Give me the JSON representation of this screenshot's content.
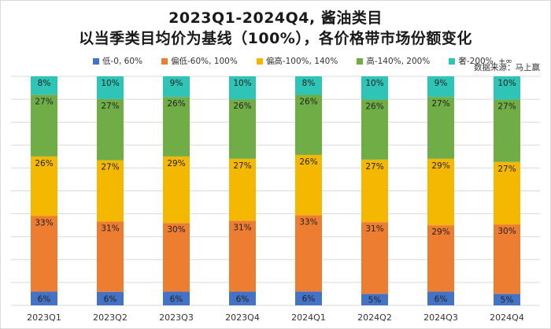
{
  "title_line1": "2023Q1-2024Q4, 酱油类目",
  "title_line2": "以当季类目均价为基线（100%），各价格带市场份额变化",
  "source": "数据来源：马上赢",
  "chart_data": {
    "type": "bar",
    "stacked": true,
    "percent": true,
    "title": "2023Q1-2024Q4, 酱油类目 以当季类目均价为基线（100%），各价格带市场份额变化",
    "xlabel": "",
    "ylabel": "",
    "ylim": [
      0,
      100
    ],
    "grid": true,
    "legend_position": "top",
    "categories": [
      "2023Q1",
      "2023Q2",
      "2023Q3",
      "2023Q4",
      "2024Q1",
      "2024Q2",
      "2024Q3",
      "2024Q4"
    ],
    "series": [
      {
        "name": "低-0, 60%",
        "color": "#4472c4",
        "values": [
          6,
          6,
          6,
          6,
          6,
          5,
          6,
          5
        ]
      },
      {
        "name": "偏低-60%, 100%",
        "color": "#ed7d31",
        "values": [
          33,
          31,
          30,
          31,
          33,
          31,
          29,
          30
        ]
      },
      {
        "name": "偏高-100%, 140%",
        "color": "#f5b800",
        "values": [
          26,
          27,
          29,
          27,
          26,
          27,
          29,
          27
        ]
      },
      {
        "name": "高-140%, 200%",
        "color": "#70ad47",
        "values": [
          27,
          27,
          26,
          26,
          26,
          26,
          27,
          27
        ]
      },
      {
        "name": "奢-200%, +∞",
        "color": "#2ec4b6",
        "values": [
          8,
          10,
          9,
          10,
          8,
          10,
          9,
          10
        ]
      }
    ]
  }
}
